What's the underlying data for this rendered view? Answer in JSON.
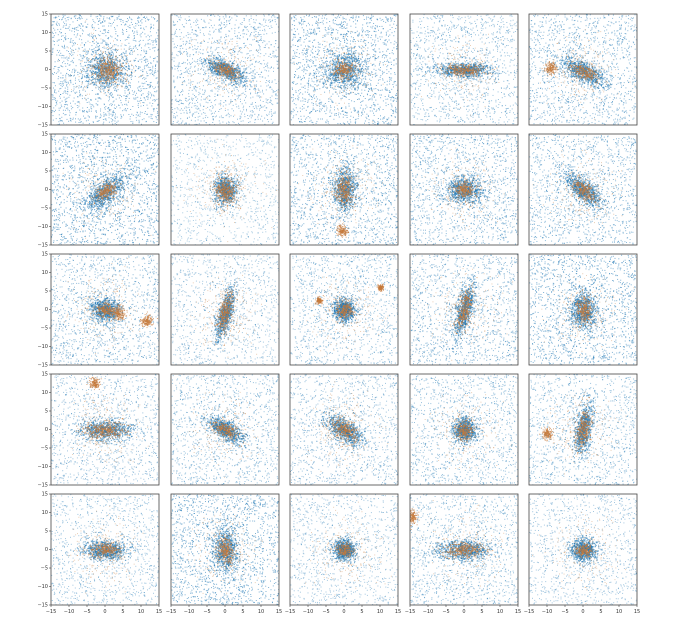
{
  "chart_data": {
    "type": "scatter",
    "grid_layout": {
      "rows": 5,
      "cols": 5
    },
    "xlim": [
      -15,
      15
    ],
    "ylim": [
      -15,
      15
    ],
    "x_ticks": [
      -15,
      -10,
      -5,
      0,
      5,
      10,
      15
    ],
    "y_ticks": [
      -15,
      -10,
      -5,
      0,
      5,
      10,
      15
    ],
    "x_tick_labels": [
      "−15",
      "−10",
      "−5",
      "0",
      "5",
      "10",
      "15"
    ],
    "y_tick_labels": [
      "−15",
      "−10",
      "−5",
      "0",
      "5",
      "10",
      "15"
    ],
    "y_ticks_shown_on": "left column",
    "x_ticks_shown_on": "bottom row",
    "grid": false,
    "legend": "none",
    "series_colors": {
      "dark_matter": "#1f77b4",
      "stars": "#c47a3a"
    },
    "panels": [
      {
        "row": 0,
        "col": 0,
        "bg_density": 0.85,
        "core": {
          "x": 0,
          "y": 0,
          "sx": 3.0,
          "sy": 2.5,
          "angle": -20
        },
        "star_cores": [
          {
            "x": 0.5,
            "y": 0,
            "sx": 2.0,
            "sy": 1.6,
            "angle": -20
          }
        ]
      },
      {
        "row": 0,
        "col": 1,
        "bg_density": 0.7,
        "core": {
          "x": 0,
          "y": 0,
          "sx": 3.0,
          "sy": 1.2,
          "angle": -25
        },
        "star_cores": [
          {
            "x": 0,
            "y": 0,
            "sx": 2.0,
            "sy": 0.9,
            "angle": -25
          }
        ]
      },
      {
        "row": 0,
        "col": 2,
        "bg_density": 0.9,
        "core": {
          "x": 0,
          "y": 0,
          "sx": 2.8,
          "sy": 2.4,
          "angle": 0
        },
        "star_cores": [
          {
            "x": 0,
            "y": 0,
            "sx": 1.5,
            "sy": 1.2,
            "angle": 0
          }
        ]
      },
      {
        "row": 0,
        "col": 3,
        "bg_density": 0.6,
        "core": {
          "x": 0,
          "y": 0,
          "sx": 4.0,
          "sy": 1.0,
          "angle": 0
        },
        "star_cores": [
          {
            "x": 0,
            "y": 0,
            "sx": 3.0,
            "sy": 0.8,
            "angle": 0
          }
        ]
      },
      {
        "row": 0,
        "col": 4,
        "bg_density": 0.75,
        "core": {
          "x": 0,
          "y": -0.5,
          "sx": 3.2,
          "sy": 1.3,
          "angle": -25
        },
        "star_cores": [
          {
            "x": 0,
            "y": -0.5,
            "sx": 2.2,
            "sy": 1.0,
            "angle": -25
          },
          {
            "x": -9,
            "y": 0.5,
            "sx": 0.8,
            "sy": 0.8,
            "angle": 0
          }
        ]
      },
      {
        "row": 1,
        "col": 0,
        "bg_density": 0.95,
        "core": {
          "x": 0,
          "y": -0.5,
          "sx": 3.6,
          "sy": 1.6,
          "angle": 40
        },
        "star_cores": [
          {
            "x": 0,
            "y": -0.5,
            "sx": 1.8,
            "sy": 1.0,
            "angle": 40
          }
        ]
      },
      {
        "row": 1,
        "col": 1,
        "bg_density": 0.35,
        "core": {
          "x": 0,
          "y": 0,
          "sx": 1.6,
          "sy": 2.0,
          "angle": 0
        },
        "star_cores": [
          {
            "x": 0,
            "y": 0,
            "sx": 1.6,
            "sy": 2.0,
            "angle": 0
          }
        ]
      },
      {
        "row": 1,
        "col": 2,
        "bg_density": 0.8,
        "core": {
          "x": 0,
          "y": 0,
          "sx": 1.6,
          "sy": 3.0,
          "angle": 0
        },
        "star_cores": [
          {
            "x": 0,
            "y": 0,
            "sx": 1.3,
            "sy": 2.2,
            "angle": 0
          },
          {
            "x": -0.5,
            "y": -11,
            "sx": 0.7,
            "sy": 0.7,
            "angle": 0
          }
        ]
      },
      {
        "row": 1,
        "col": 3,
        "bg_density": 0.75,
        "core": {
          "x": 0,
          "y": 0,
          "sx": 2.6,
          "sy": 1.8,
          "angle": 0
        },
        "star_cores": [
          {
            "x": 0,
            "y": 0,
            "sx": 1.6,
            "sy": 1.2,
            "angle": 0
          }
        ]
      },
      {
        "row": 1,
        "col": 4,
        "bg_density": 0.75,
        "core": {
          "x": 0,
          "y": 0,
          "sx": 3.0,
          "sy": 1.3,
          "angle": -40
        },
        "star_cores": [
          {
            "x": 0,
            "y": 0,
            "sx": 2.0,
            "sy": 1.0,
            "angle": -40
          }
        ]
      },
      {
        "row": 2,
        "col": 0,
        "bg_density": 0.7,
        "core": {
          "x": 0,
          "y": 0,
          "sx": 2.0,
          "sy": 1.5,
          "angle": 0
        },
        "star_cores": [
          {
            "x": 0,
            "y": 0,
            "sx": 1.4,
            "sy": 1.0,
            "angle": 0
          },
          {
            "x": 3.5,
            "y": -1,
            "sx": 1.0,
            "sy": 0.9,
            "angle": 0
          },
          {
            "x": 11.5,
            "y": -3,
            "sx": 0.8,
            "sy": 0.8,
            "angle": 0
          }
        ]
      },
      {
        "row": 2,
        "col": 1,
        "bg_density": 0.45,
        "core": {
          "x": 0,
          "y": -1,
          "sx": 1.0,
          "sy": 3.5,
          "angle": -15
        },
        "star_cores": [
          {
            "x": 0,
            "y": -1,
            "sx": 1.0,
            "sy": 3.0,
            "angle": -15
          }
        ]
      },
      {
        "row": 2,
        "col": 2,
        "bg_density": 0.6,
        "core": {
          "x": 0,
          "y": 0,
          "sx": 1.6,
          "sy": 1.6,
          "angle": 0
        },
        "star_cores": [
          {
            "x": 0,
            "y": 0,
            "sx": 1.2,
            "sy": 1.2,
            "angle": 0
          },
          {
            "x": -7,
            "y": 2.5,
            "sx": 0.4,
            "sy": 0.4,
            "angle": 0
          },
          {
            "x": 10,
            "y": 6,
            "sx": 0.4,
            "sy": 0.4,
            "angle": 0
          }
        ]
      },
      {
        "row": 2,
        "col": 3,
        "bg_density": 0.7,
        "core": {
          "x": 0,
          "y": 0,
          "sx": 1.1,
          "sy": 3.8,
          "angle": -15
        },
        "star_cores": [
          {
            "x": 0,
            "y": 0,
            "sx": 0.9,
            "sy": 2.8,
            "angle": -15
          }
        ]
      },
      {
        "row": 2,
        "col": 4,
        "bg_density": 0.9,
        "core": {
          "x": 0,
          "y": 0,
          "sx": 1.8,
          "sy": 2.5,
          "angle": 0
        },
        "star_cores": [
          {
            "x": 0,
            "y": 0,
            "sx": 1.2,
            "sy": 1.8,
            "angle": 0
          }
        ]
      },
      {
        "row": 3,
        "col": 0,
        "bg_density": 0.55,
        "core": {
          "x": 0,
          "y": 0,
          "sx": 4.0,
          "sy": 1.5,
          "angle": 0
        },
        "star_cores": [
          {
            "x": 0,
            "y": 0,
            "sx": 3.0,
            "sy": 1.1,
            "angle": 0
          },
          {
            "x": -3,
            "y": 12.5,
            "sx": 0.7,
            "sy": 0.7,
            "angle": 0
          }
        ]
      },
      {
        "row": 3,
        "col": 1,
        "bg_density": 0.6,
        "core": {
          "x": 0,
          "y": 0,
          "sx": 2.8,
          "sy": 1.2,
          "angle": -30
        },
        "star_cores": [
          {
            "x": 0,
            "y": 0,
            "sx": 2.0,
            "sy": 0.9,
            "angle": -30
          }
        ]
      },
      {
        "row": 3,
        "col": 2,
        "bg_density": 0.55,
        "core": {
          "x": 0,
          "y": 0,
          "sx": 3.0,
          "sy": 1.4,
          "angle": -35
        },
        "star_cores": [
          {
            "x": 0,
            "y": 0,
            "sx": 2.2,
            "sy": 1.2,
            "angle": -35
          }
        ]
      },
      {
        "row": 3,
        "col": 3,
        "bg_density": 0.6,
        "core": {
          "x": 0,
          "y": 0,
          "sx": 1.6,
          "sy": 1.6,
          "angle": 0
        },
        "star_cores": [
          {
            "x": 0,
            "y": 0,
            "sx": 1.3,
            "sy": 1.3,
            "angle": 0
          }
        ]
      },
      {
        "row": 3,
        "col": 4,
        "bg_density": 0.6,
        "core": {
          "x": 0,
          "y": 0,
          "sx": 1.2,
          "sy": 3.4,
          "angle": -10
        },
        "star_cores": [
          {
            "x": 0,
            "y": 0,
            "sx": 1.0,
            "sy": 2.6,
            "angle": -10
          },
          {
            "x": -10,
            "y": -1,
            "sx": 0.7,
            "sy": 0.7,
            "angle": 0
          }
        ]
      },
      {
        "row": 4,
        "col": 0,
        "bg_density": 0.5,
        "core": {
          "x": 0,
          "y": 0,
          "sx": 3.0,
          "sy": 1.3,
          "angle": 0
        },
        "star_cores": [
          {
            "x": 0,
            "y": 0,
            "sx": 2.2,
            "sy": 1.0,
            "angle": 0
          }
        ]
      },
      {
        "row": 4,
        "col": 1,
        "bg_density": 0.9,
        "core": {
          "x": 0,
          "y": 0,
          "sx": 1.8,
          "sy": 3.2,
          "angle": 0
        },
        "star_cores": [
          {
            "x": 0,
            "y": 0,
            "sx": 1.2,
            "sy": 2.0,
            "angle": 0
          }
        ]
      },
      {
        "row": 4,
        "col": 2,
        "bg_density": 0.45,
        "core": {
          "x": 0,
          "y": 0,
          "sx": 1.6,
          "sy": 1.4,
          "angle": 0
        },
        "star_cores": [
          {
            "x": 0,
            "y": 0,
            "sx": 1.2,
            "sy": 1.0,
            "angle": 0
          }
        ]
      },
      {
        "row": 4,
        "col": 3,
        "bg_density": 0.6,
        "core": {
          "x": 0,
          "y": 0,
          "sx": 3.8,
          "sy": 1.4,
          "angle": 0
        },
        "star_cores": [
          {
            "x": 0,
            "y": 0,
            "sx": 2.8,
            "sy": 1.0,
            "angle": 0
          },
          {
            "x": -14.5,
            "y": 9,
            "sx": 0.7,
            "sy": 0.9,
            "angle": 0
          }
        ]
      },
      {
        "row": 4,
        "col": 4,
        "bg_density": 0.45,
        "core": {
          "x": 0,
          "y": 0,
          "sx": 1.8,
          "sy": 1.6,
          "angle": 0
        },
        "star_cores": [
          {
            "x": 0,
            "y": 0,
            "sx": 1.2,
            "sy": 1.0,
            "angle": 0
          }
        ]
      }
    ]
  }
}
